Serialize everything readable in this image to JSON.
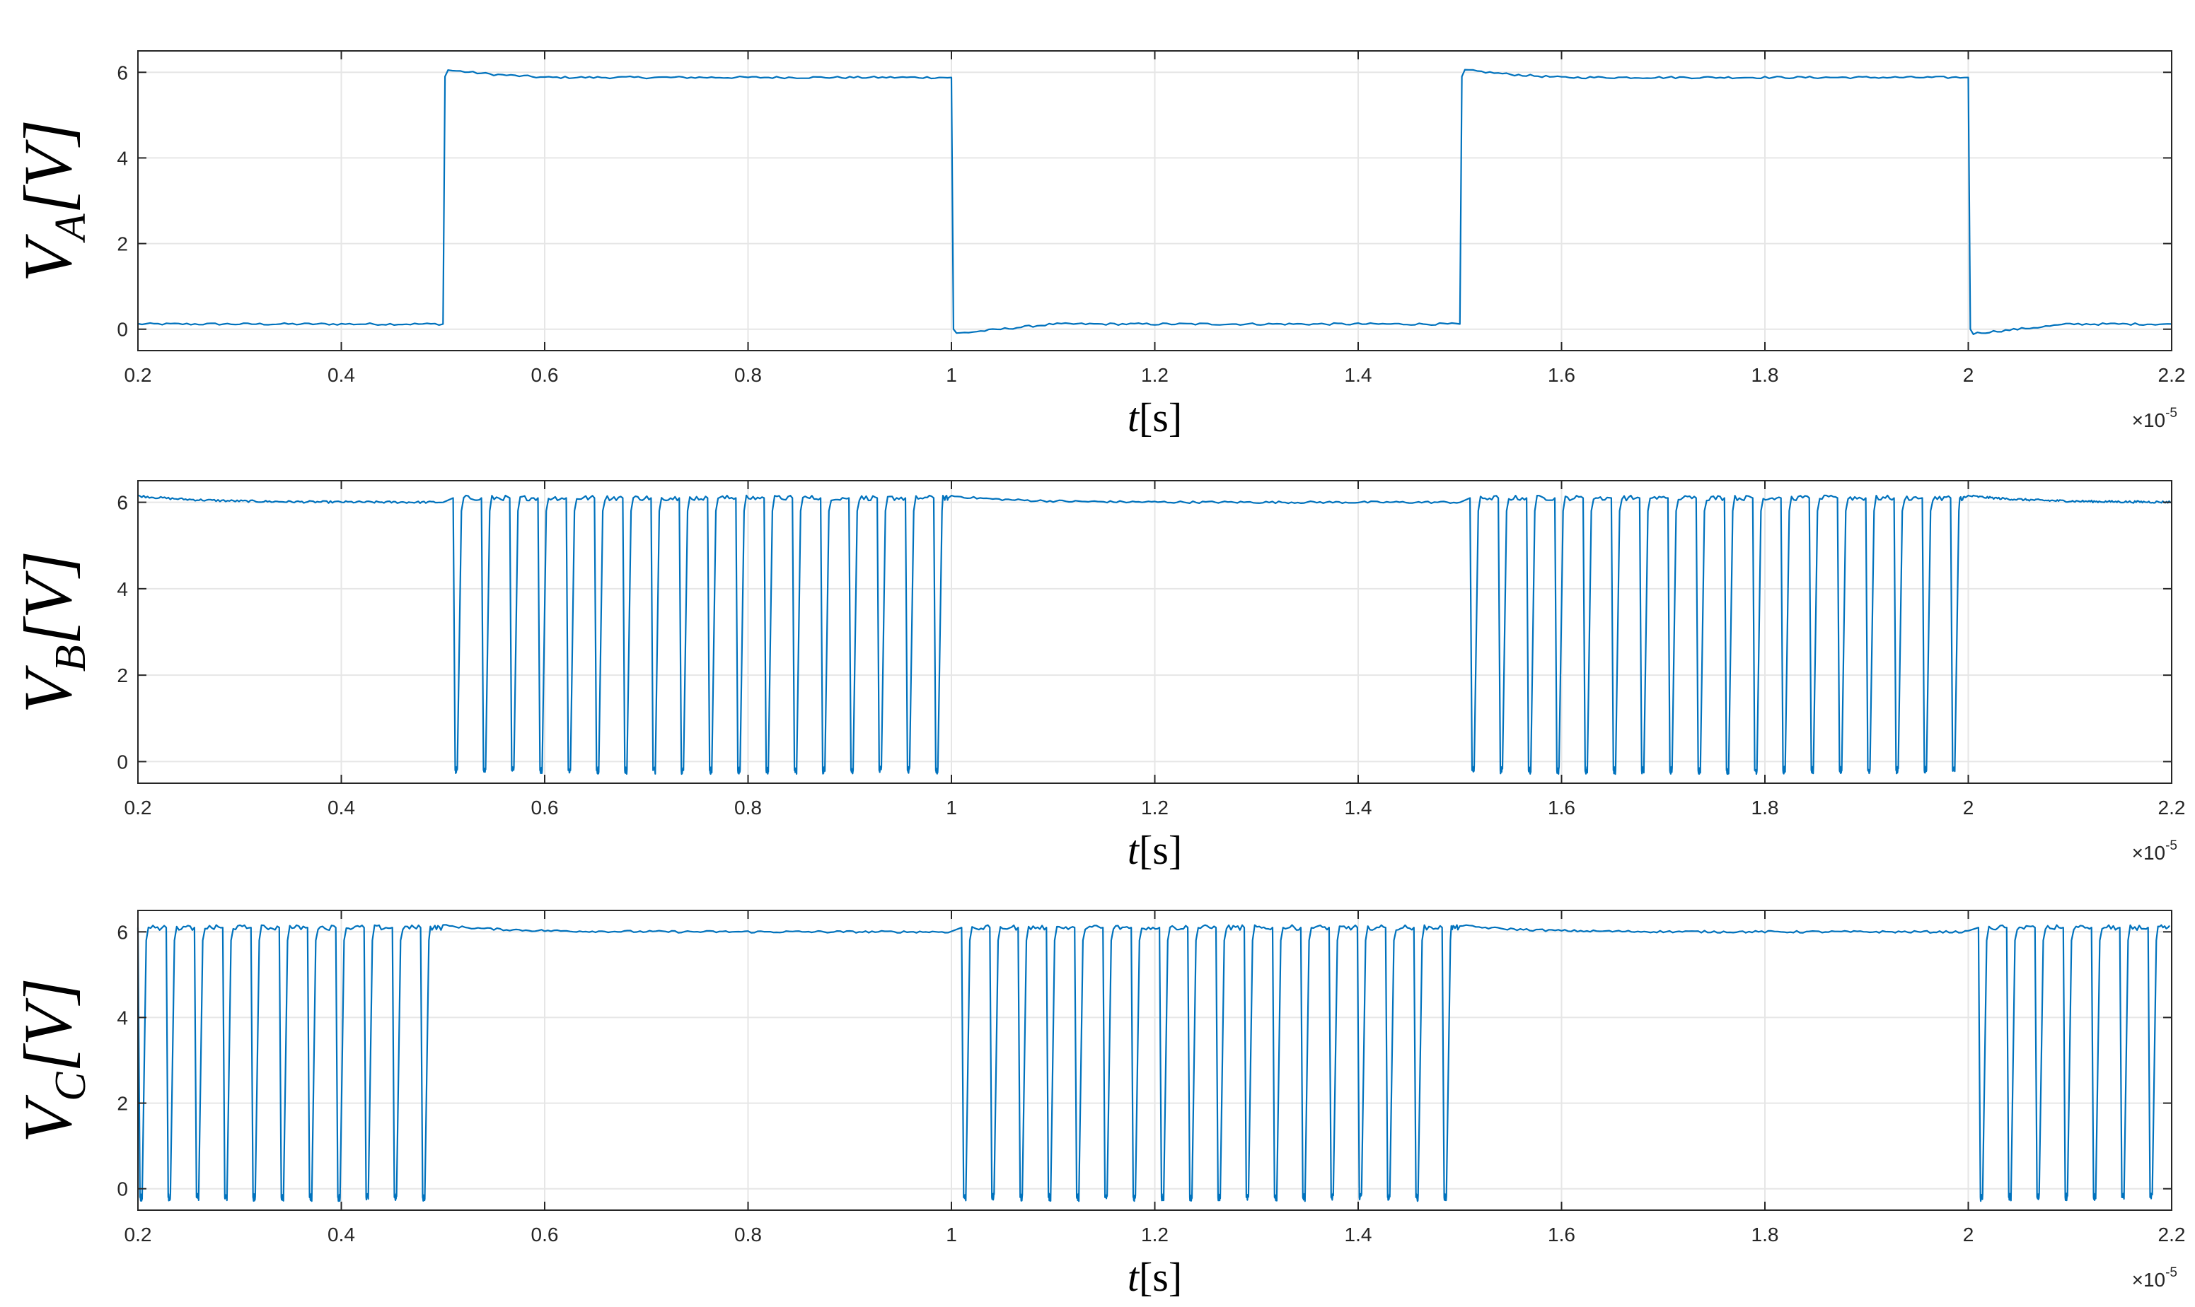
{
  "accent_color": "#0072bd",
  "chart_data": [
    {
      "type": "line",
      "ylabel": {
        "main": "V",
        "sub": "A",
        "unit": "[V]"
      },
      "xlabel": {
        "var": "t",
        "unit": "[s]"
      },
      "x_multiplier": "×10",
      "x_multiplier_exp": "-5",
      "xlim": [
        0.2,
        2.2
      ],
      "ylim": [
        -0.5,
        6.5
      ],
      "xticks": [
        "0.2",
        "0.4",
        "0.6",
        "0.8",
        "1",
        "1.2",
        "1.4",
        "1.6",
        "1.8",
        "2",
        "2.2"
      ],
      "yticks": [
        "0",
        "2",
        "4",
        "6"
      ],
      "grid": true,
      "series": [
        {
          "x": [
            0.2,
            0.5,
            0.502,
            0.505,
            0.55,
            0.6,
            1.0,
            1.002,
            1.005,
            1.1,
            1.5,
            1.502,
            1.505,
            1.55,
            1.6,
            2.0,
            2.002,
            2.005,
            2.1,
            2.2
          ],
          "y": [
            0.12,
            0.12,
            5.9,
            6.05,
            5.95,
            5.88,
            5.88,
            0.0,
            -0.1,
            0.12,
            0.12,
            5.9,
            6.05,
            5.95,
            5.88,
            5.88,
            0.0,
            -0.1,
            0.12,
            0.12
          ]
        }
      ]
    },
    {
      "type": "line",
      "ylabel": {
        "main": "V",
        "sub": "B",
        "unit": "[V]"
      },
      "xlabel": {
        "var": "t",
        "unit": "[s]"
      },
      "x_multiplier": "×10",
      "x_multiplier_exp": "-5",
      "xlim": [
        0.2,
        2.2
      ],
      "ylim": [
        -0.5,
        6.5
      ],
      "xticks": [
        "0.2",
        "0.4",
        "0.6",
        "0.8",
        "1",
        "1.2",
        "1.4",
        "1.6",
        "1.8",
        "2",
        "2.2"
      ],
      "yticks": [
        "0",
        "2",
        "4",
        "6"
      ],
      "grid": true,
      "series": [
        {
          "steady_high": 6.0,
          "overshoot": 6.15,
          "pwm_high": 6.1,
          "pwm_low": -0.2,
          "pwm_period": 0.0278,
          "pwm_windows": [
            [
              0.51,
              1.0
            ],
            [
              1.51,
              2.0
            ]
          ],
          "steady_windows": [
            [
              0.2,
              0.5
            ],
            [
              1.0,
              1.5
            ],
            [
              2.0,
              2.2
            ]
          ]
        }
      ]
    },
    {
      "type": "line",
      "ylabel": {
        "main": "V",
        "sub": "C",
        "unit": "[V]"
      },
      "xlabel": {
        "var": "t",
        "unit": "[s]"
      },
      "x_multiplier": "×10",
      "x_multiplier_exp": "-5",
      "xlim": [
        0.2,
        2.2
      ],
      "ylim": [
        -0.5,
        6.5
      ],
      "xticks": [
        "0.2",
        "0.4",
        "0.6",
        "0.8",
        "1",
        "1.2",
        "1.4",
        "1.6",
        "1.8",
        "2",
        "2.2"
      ],
      "yticks": [
        "0",
        "2",
        "4",
        "6"
      ],
      "grid": true,
      "series": [
        {
          "steady_high": 6.0,
          "overshoot": 6.15,
          "pwm_high": 6.1,
          "pwm_low": -0.2,
          "pwm_period": 0.0278,
          "pwm_windows": [
            [
              0.2,
              0.5
            ],
            [
              1.01,
              1.5
            ],
            [
              2.01,
              2.2
            ]
          ],
          "steady_windows": [
            [
              0.5,
              1.0
            ],
            [
              1.5,
              2.0
            ]
          ]
        }
      ]
    }
  ]
}
